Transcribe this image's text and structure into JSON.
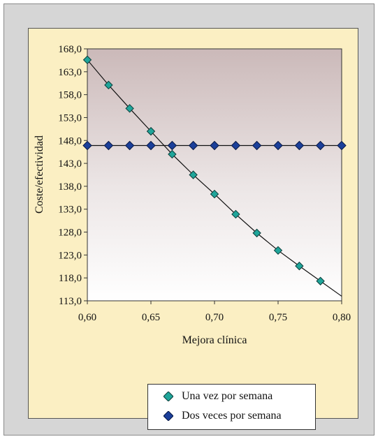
{
  "chart_data": {
    "type": "scatter",
    "xlabel": "Mejora  clínica",
    "ylabel": "Coste/efectividad",
    "x_ticks": [
      "0,60",
      "0,65",
      "0,70",
      "0,75",
      "0,80"
    ],
    "y_ticks": [
      "168,0",
      "163,0",
      "158,0",
      "153,0",
      "148,0",
      "143,0",
      "138,0",
      "133,0",
      "128,0",
      "123,0",
      "118,0",
      "113,0"
    ],
    "xlim": [
      0.6,
      0.8
    ],
    "ylim": [
      113.0,
      168.0
    ],
    "colors": {
      "once_weekly": "#1fa59a",
      "twice_weekly": "#1b3f9a",
      "line": "#111111"
    },
    "series": [
      {
        "name": "Una vez por semana",
        "x": [
          0.6,
          0.6167,
          0.6333,
          0.65,
          0.6667,
          0.6833,
          0.7,
          0.7167,
          0.7333,
          0.75,
          0.7667,
          0.7833
        ],
        "y": [
          165.6,
          160.1,
          155.0,
          150.0,
          145.0,
          140.5,
          136.3,
          131.9,
          127.8,
          124.0,
          120.6,
          117.3
        ]
      },
      {
        "name": "Dos veces por semana",
        "x": [
          0.6,
          0.6167,
          0.6333,
          0.65,
          0.6667,
          0.6833,
          0.7,
          0.7167,
          0.7333,
          0.75,
          0.7667,
          0.7833,
          0.8
        ],
        "y": [
          146.9,
          146.9,
          146.9,
          146.9,
          146.9,
          146.9,
          146.9,
          146.9,
          146.9,
          146.9,
          146.9,
          146.9,
          146.9
        ]
      }
    ],
    "curve": {
      "x": [
        0.6,
        0.6167,
        0.6333,
        0.65,
        0.6667,
        0.6833,
        0.7,
        0.7167,
        0.7333,
        0.75,
        0.7667,
        0.7833,
        0.8
      ],
      "y": [
        165.6,
        160.1,
        155.0,
        150.0,
        145.0,
        140.5,
        136.3,
        131.9,
        127.8,
        124.0,
        120.6,
        117.3,
        114.0
      ]
    },
    "legend_position": "bottom"
  }
}
